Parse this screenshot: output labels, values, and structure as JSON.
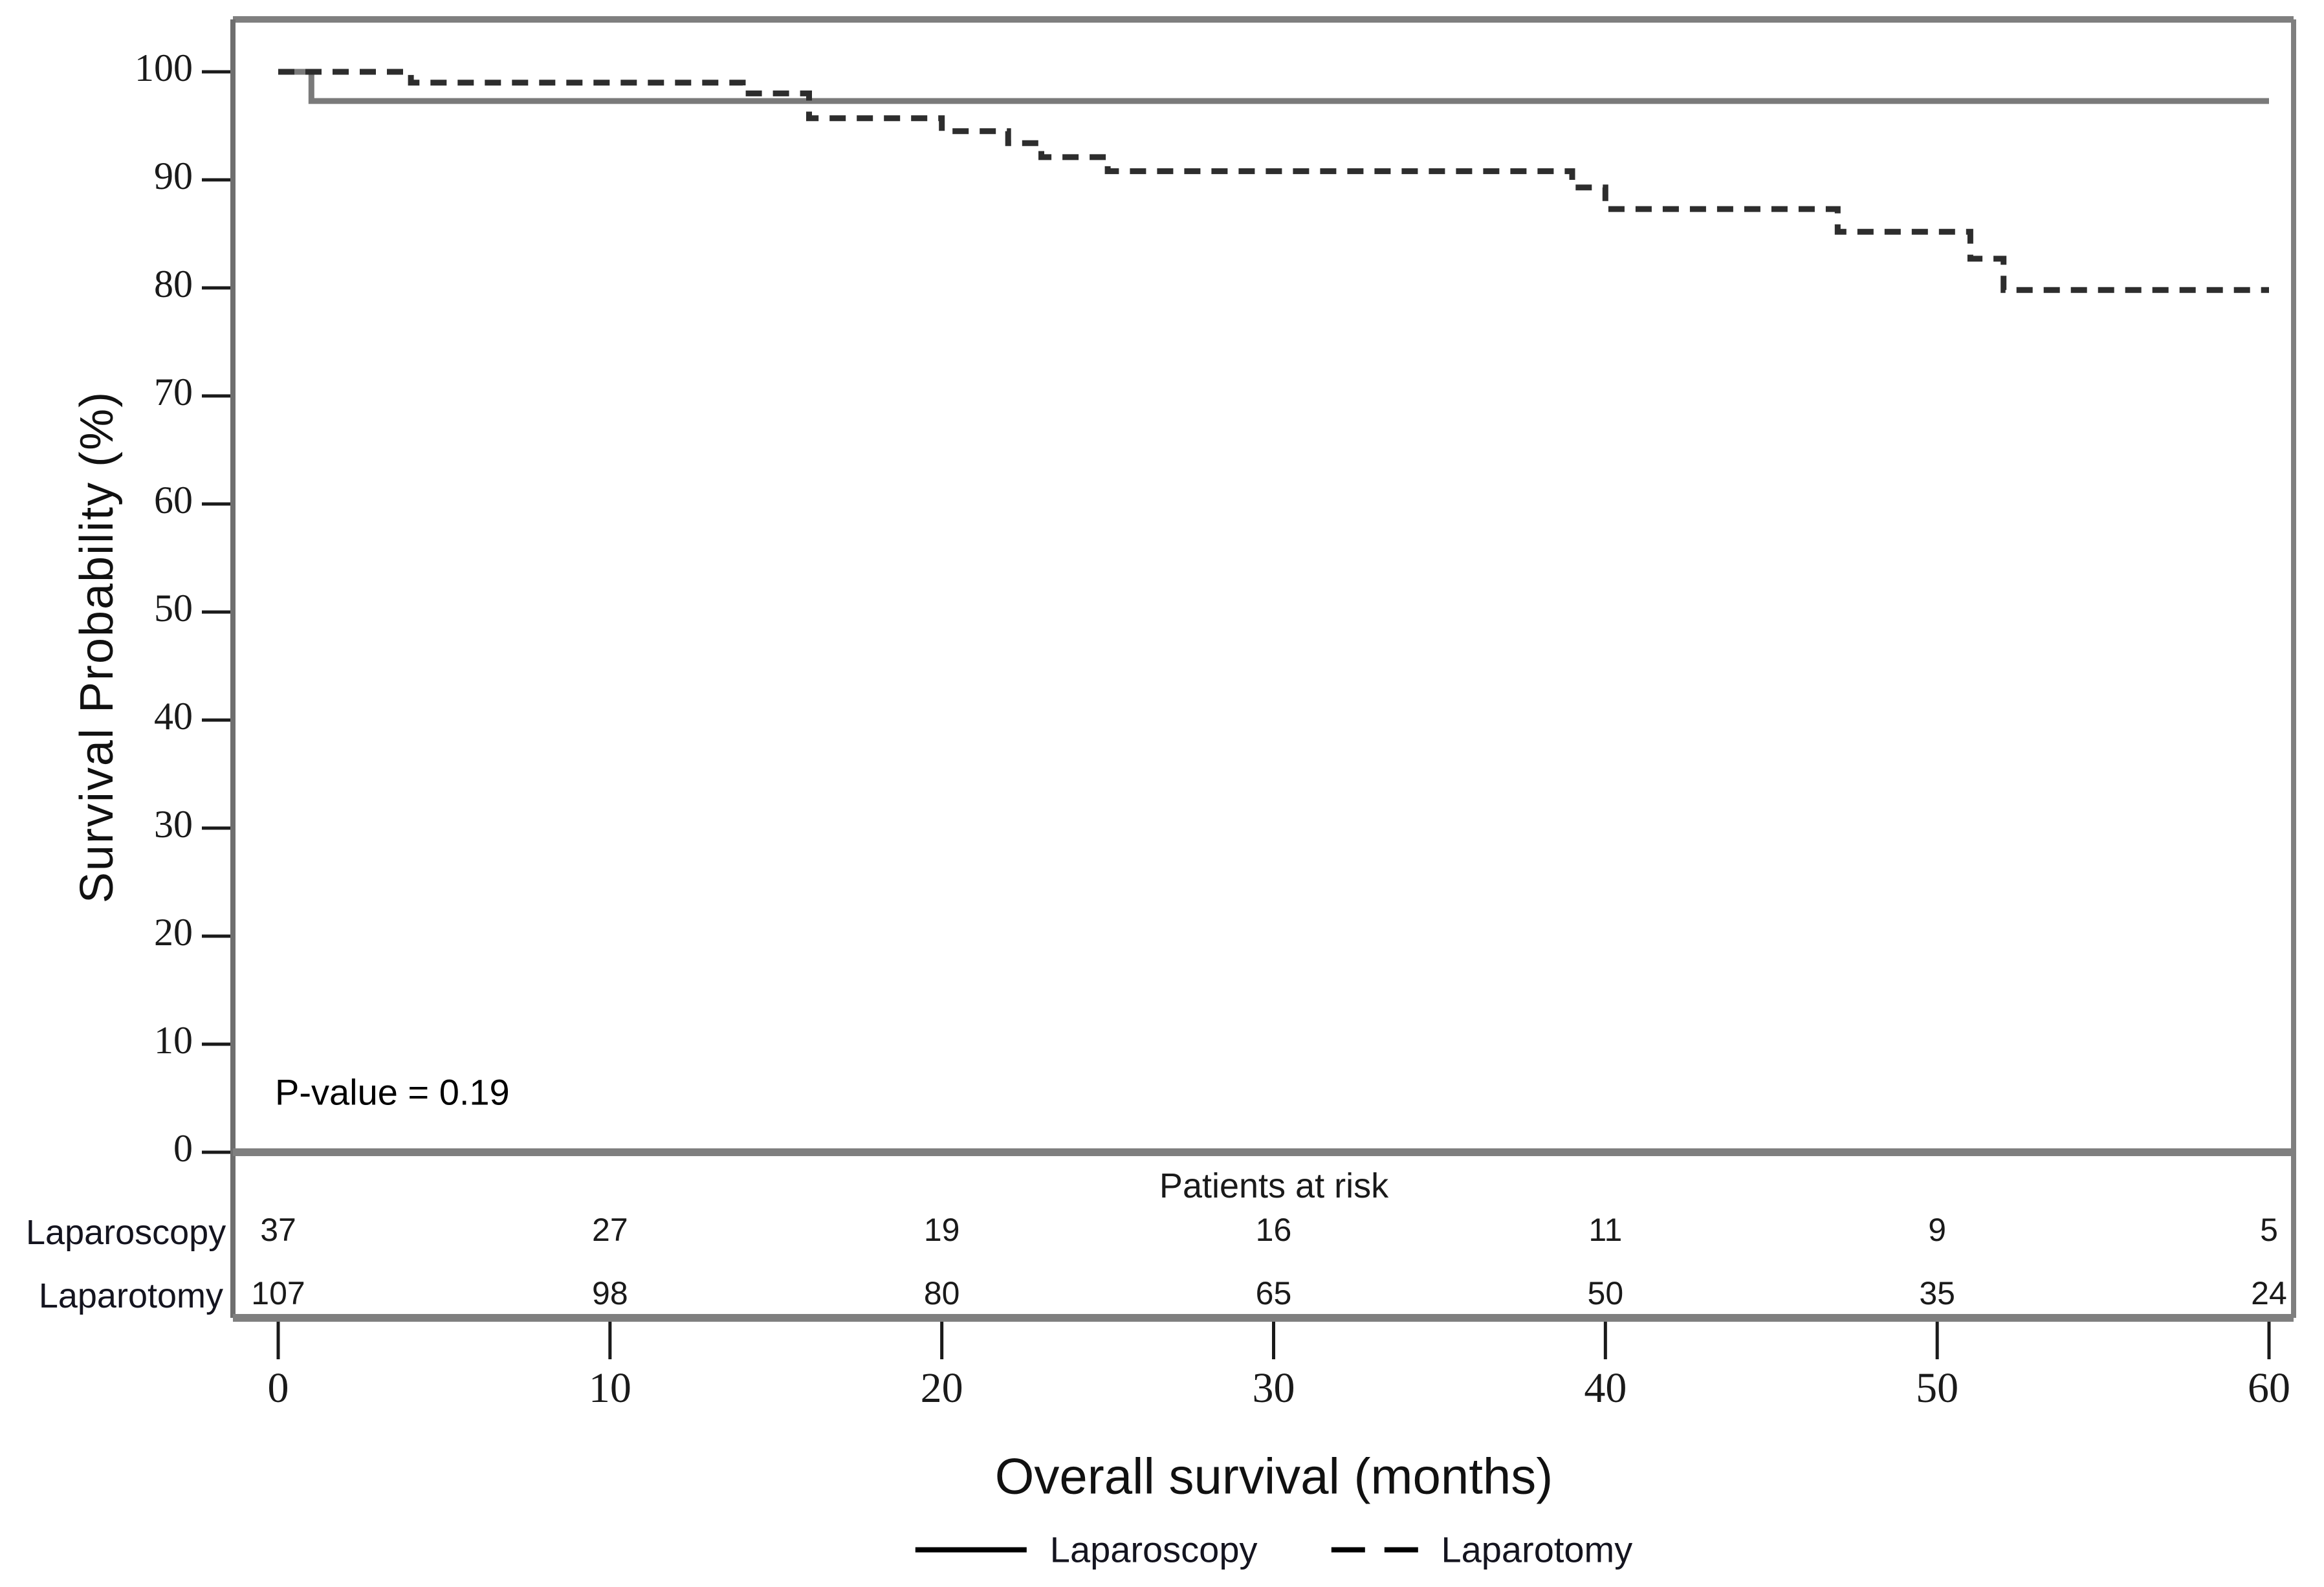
{
  "figure": {
    "background": "#ffffff"
  },
  "colors": {
    "frame": "#7f7f7f",
    "tick": "#1a1a1a",
    "tick_label": "#1a1a1a",
    "solid_series": "#7a7a7a",
    "dashed_series": "#2d2d2d",
    "risk_number": "#1a1a1a"
  },
  "chart_data": {
    "type": "line",
    "subtype": "kaplan-meier-step",
    "title": "",
    "xlabel": "Overall survival (months)",
    "ylabel": "Survival Probability (%)",
    "xlim": [
      0,
      60
    ],
    "ylim": [
      0,
      100
    ],
    "xticks": [
      0,
      10,
      20,
      30,
      40,
      50,
      60
    ],
    "yticks": [
      0,
      10,
      20,
      30,
      40,
      50,
      60,
      70,
      80,
      90,
      100
    ],
    "grid": false,
    "legend_position": "bottom",
    "series": [
      {
        "name": "Laparoscopy",
        "line": "solid",
        "step_x": [
          0,
          1
        ],
        "step_y": [
          100,
          97.3
        ],
        "end_x": 60
      },
      {
        "name": "Laparotomy",
        "line": "dashed",
        "step_x": [
          0,
          4,
          14,
          16,
          20,
          22,
          23,
          25,
          39,
          40,
          47,
          51,
          52
        ],
        "step_y": [
          100,
          99,
          98,
          95.7,
          94.5,
          93.4,
          92.1,
          90.8,
          89.3,
          87.3,
          85.2,
          82.7,
          79.8
        ],
        "end_x": 60
      }
    ],
    "annotations": [
      {
        "text": "P-value = 0.19"
      }
    ],
    "risk_table": {
      "title": "Patients at risk",
      "times": [
        0,
        10,
        20,
        30,
        40,
        50,
        60
      ],
      "rows": [
        {
          "label": "Laparoscopy",
          "values": [
            37,
            27,
            19,
            16,
            11,
            9,
            5
          ]
        },
        {
          "label": "Laparotomy",
          "values": [
            107,
            98,
            80,
            65,
            50,
            35,
            24
          ]
        }
      ]
    }
  }
}
